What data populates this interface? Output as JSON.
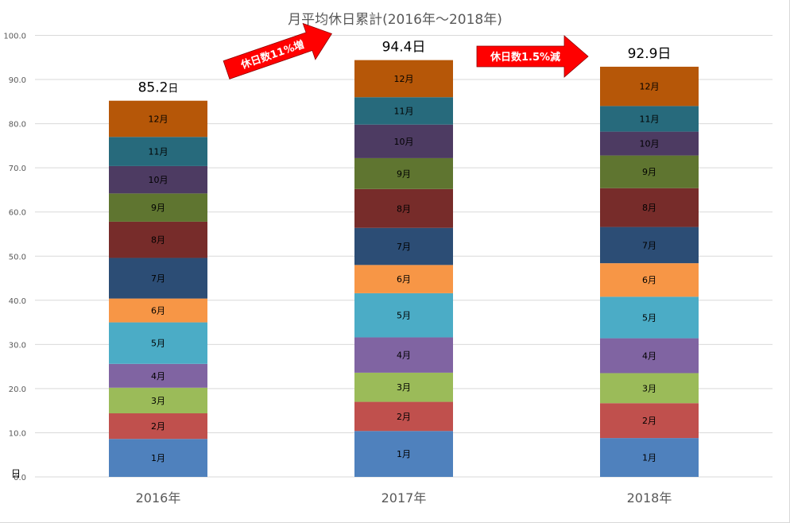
{
  "chart_data": {
    "type": "bar",
    "stacked": true,
    "title": "月平均休日累計(2016年〜2018年)",
    "ylabel": "日",
    "ylim": [
      0,
      100
    ],
    "ytick_step": 10,
    "ytick_labels": [
      "0.0",
      "10.0",
      "20.0",
      "30.0",
      "40.0",
      "50.0",
      "60.0",
      "70.0",
      "80.0",
      "90.0",
      "100.0"
    ],
    "grid": true,
    "categories": [
      "2016年",
      "2017年",
      "2018年"
    ],
    "totals": [
      85.2,
      94.4,
      92.9
    ],
    "total_labels": [
      {
        "value": "85.2",
        "unit": "日"
      },
      {
        "value": "94.4",
        "unit": "日"
      },
      {
        "value": "92.9",
        "unit": "日"
      }
    ],
    "series": [
      {
        "name": "1月",
        "color": "#4F81BD",
        "values": [
          8.6,
          10.4,
          8.8
        ]
      },
      {
        "name": "2月",
        "color": "#C0504D",
        "values": [
          5.8,
          6.6,
          7.9
        ]
      },
      {
        "name": "3月",
        "color": "#9BBB59",
        "values": [
          5.8,
          6.6,
          6.8
        ]
      },
      {
        "name": "4月",
        "color": "#8064A2",
        "values": [
          5.4,
          8.0,
          7.9
        ]
      },
      {
        "name": "5月",
        "color": "#4BACC6",
        "values": [
          9.4,
          10.0,
          9.4
        ]
      },
      {
        "name": "6月",
        "color": "#F79646",
        "values": [
          5.4,
          6.4,
          7.6
        ]
      },
      {
        "name": "7月",
        "color": "#2C4D75",
        "values": [
          9.2,
          8.4,
          8.2
        ]
      },
      {
        "name": "8月",
        "color": "#772C2A",
        "values": [
          8.2,
          8.8,
          8.8
        ]
      },
      {
        "name": "9月",
        "color": "#5F7530",
        "values": [
          6.4,
          7.0,
          7.4
        ]
      },
      {
        "name": "10月",
        "color": "#4D3B62",
        "values": [
          6.2,
          7.6,
          5.4
        ]
      },
      {
        "name": "11月",
        "color": "#276A7C",
        "values": [
          6.6,
          6.2,
          5.8
        ]
      },
      {
        "name": "12月",
        "color": "#B65708",
        "values": [
          8.2,
          8.4,
          8.9
        ]
      }
    ],
    "annotations": [
      {
        "text": "休日数11%増",
        "from": "2016年",
        "to": "2017年",
        "color": "#FF0000"
      },
      {
        "text": "休日数1.5%減",
        "from": "2017年",
        "to": "2018年",
        "color": "#FF0000"
      }
    ]
  }
}
